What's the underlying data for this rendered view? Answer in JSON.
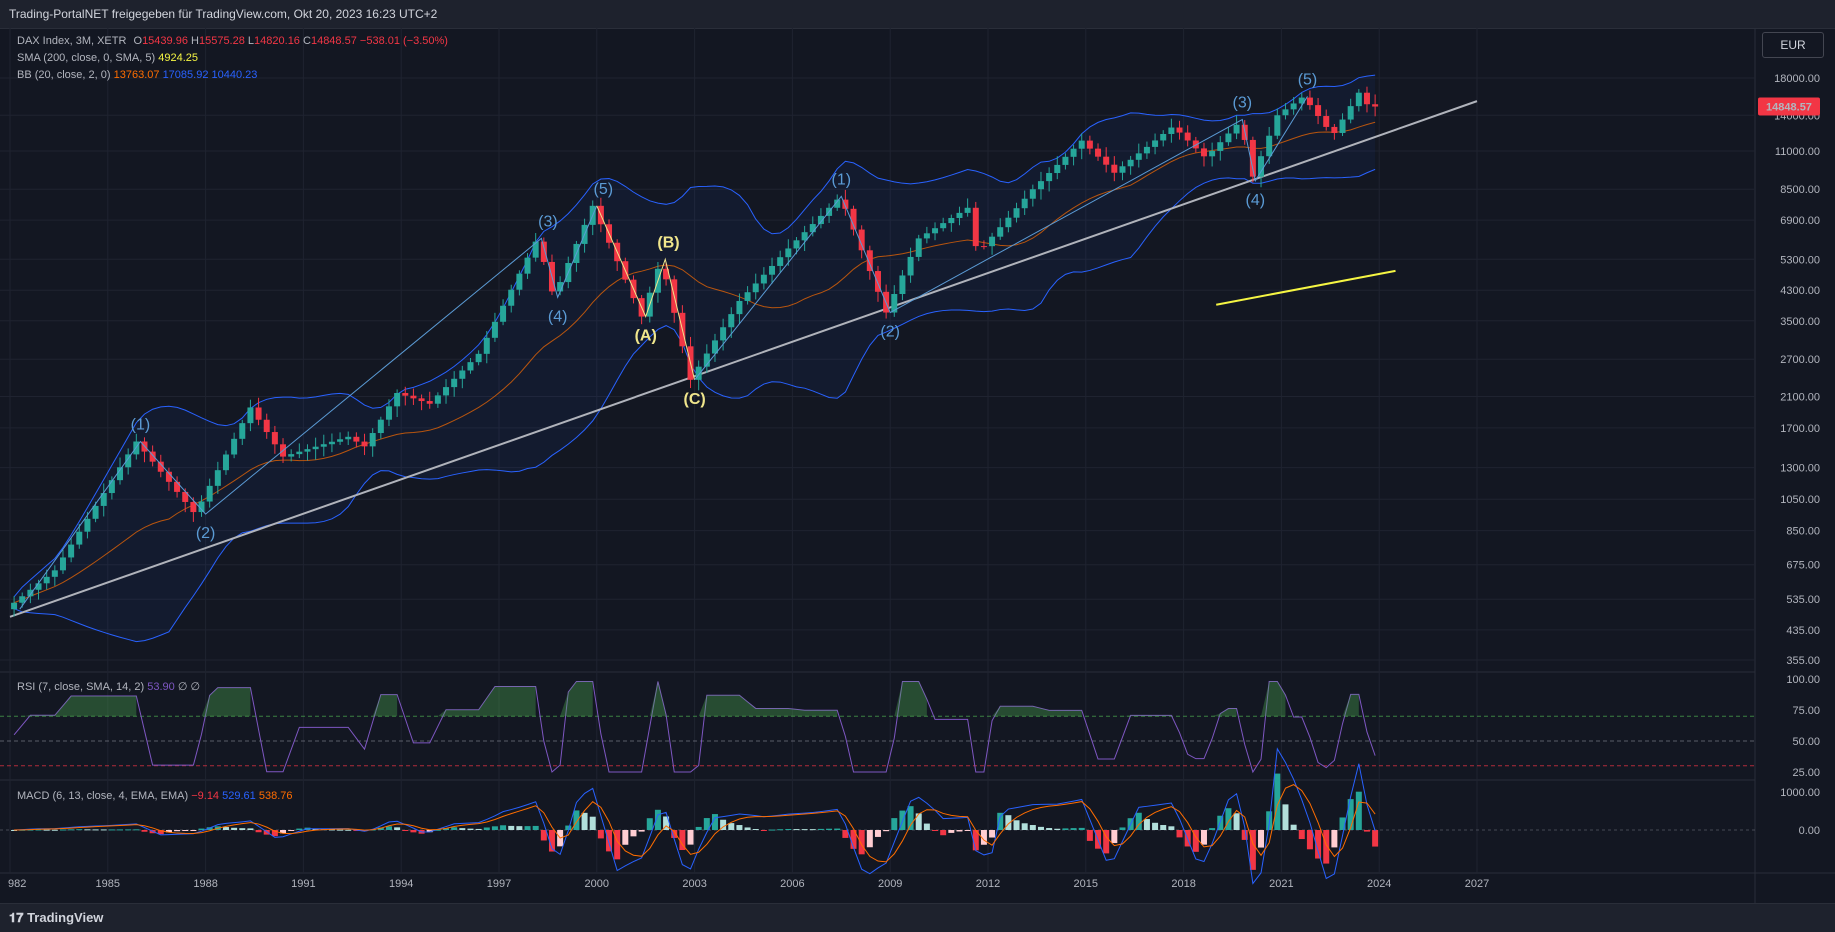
{
  "header": {
    "title": "Trading-PortalNET freigegeben für TradingView.com, Okt 20, 2023 16:23 UTC+2"
  },
  "footer": {
    "brand": "TradingView"
  },
  "currency_button": "EUR",
  "legend": {
    "main": {
      "name": "DAX Index, 3M, XETR",
      "o_label": "O",
      "o": "15439.96",
      "h_label": "H",
      "h": "15575.28",
      "l_label": "L",
      "l": "14820.16",
      "c_label": "C",
      "c": "14848.57",
      "chg": "−538.01 (−3.50%)"
    },
    "sma": {
      "name": "SMA (200, close, 0, SMA, 5)",
      "value": "4924.25"
    },
    "bb": {
      "name": "BB (20, close, 2, 0)",
      "basis": "13763.07",
      "upper": "17085.92",
      "lower": "10440.23"
    },
    "rsi": {
      "name": "RSI (7, close, SMA, 14, 2)",
      "value": "53.90",
      "v2": "∅",
      "v3": "∅"
    },
    "macd": {
      "name": "MACD (6, 13, close, 4, EMA, EMA)",
      "hist": "−9.14",
      "macd": "529.61",
      "signal": "538.76"
    }
  },
  "last_price_label": "14848.57",
  "colors": {
    "up": "#26a69a",
    "down": "#f23645",
    "bb": "#2962ff",
    "basis": "#ff6d00",
    "sma": "#f5f543",
    "rsi": "#7e57c2",
    "wave_blue": "#5b9bd5",
    "wave_yellow": "#f0e68c",
    "trend": "#b0b3bb"
  },
  "chart_data": [
    {
      "type": "candlestick",
      "title": "DAX Index, 3M, XETR",
      "scale": "log",
      "y_ticks": [
        "18000.00",
        "14000.00",
        "11000.00",
        "8500.00",
        "6900.00",
        "5300.00",
        "4300.00",
        "3500.00",
        "2700.00",
        "2100.00",
        "1700.00",
        "1300.00",
        "1050.00",
        "850.00",
        "675.00",
        "535.00",
        "435.00",
        "355.00"
      ],
      "x_ticks": [
        "982",
        "1985",
        "1988",
        "1991",
        "1994",
        "1997",
        "2000",
        "2003",
        "2006",
        "2009",
        "2012",
        "2015",
        "2018",
        "2021",
        "2024",
        "2027"
      ],
      "keypoints": [
        {
          "x": 1982.0,
          "y": 500
        },
        {
          "x": 1983.5,
          "y": 650
        },
        {
          "x": 1986.0,
          "y": 1550
        },
        {
          "x": 1987.8,
          "y": 950
        },
        {
          "x": 1989.5,
          "y": 1950
        },
        {
          "x": 1990.5,
          "y": 1400
        },
        {
          "x": 1992.5,
          "y": 1600
        },
        {
          "x": 1993.0,
          "y": 1500
        },
        {
          "x": 1994.0,
          "y": 2150
        },
        {
          "x": 1995.0,
          "y": 2000
        },
        {
          "x": 1996.5,
          "y": 2800
        },
        {
          "x": 1998.3,
          "y": 6100
        },
        {
          "x": 1998.8,
          "y": 4100
        },
        {
          "x": 2000.0,
          "y": 7600
        },
        {
          "x": 2001.5,
          "y": 3600
        },
        {
          "x": 2002.1,
          "y": 5300
        },
        {
          "x": 2003.0,
          "y": 2350
        },
        {
          "x": 2004.5,
          "y": 4000
        },
        {
          "x": 2006.0,
          "y": 5700
        },
        {
          "x": 2007.6,
          "y": 8100
        },
        {
          "x": 2009.0,
          "y": 3700
        },
        {
          "x": 2010.0,
          "y": 6100
        },
        {
          "x": 2011.5,
          "y": 7500
        },
        {
          "x": 2011.8,
          "y": 5500
        },
        {
          "x": 2013.5,
          "y": 8500
        },
        {
          "x": 2015.0,
          "y": 11800
        },
        {
          "x": 2016.0,
          "y": 9500
        },
        {
          "x": 2017.8,
          "y": 13000
        },
        {
          "x": 2018.8,
          "y": 10500
        },
        {
          "x": 2019.9,
          "y": 13600
        },
        {
          "x": 2020.2,
          "y": 9000
        },
        {
          "x": 2021.0,
          "y": 14000
        },
        {
          "x": 2021.8,
          "y": 15900
        },
        {
          "x": 2022.7,
          "y": 12200
        },
        {
          "x": 2023.5,
          "y": 16300
        },
        {
          "x": 2023.8,
          "y": 14848
        }
      ],
      "last_value": 14848.57,
      "wave_labels": [
        {
          "text": "(1)",
          "x": 1986.0,
          "y": 1550,
          "color": "blue",
          "pos": "above"
        },
        {
          "text": "(2)",
          "x": 1988.0,
          "y": 950,
          "color": "blue",
          "pos": "below"
        },
        {
          "text": "(3)",
          "x": 1998.5,
          "y": 6100,
          "color": "blue",
          "pos": "above"
        },
        {
          "text": "(4)",
          "x": 1998.8,
          "y": 4100,
          "color": "blue",
          "pos": "below"
        },
        {
          "text": "(5)",
          "x": 2000.2,
          "y": 7600,
          "color": "blue",
          "pos": "above"
        },
        {
          "text": "(A)",
          "x": 2001.5,
          "y": 3600,
          "color": "yellow",
          "pos": "below"
        },
        {
          "text": "(B)",
          "x": 2002.2,
          "y": 5300,
          "color": "yellow",
          "pos": "above"
        },
        {
          "text": "(C)",
          "x": 2003.0,
          "y": 2350,
          "color": "yellow",
          "pos": "below"
        },
        {
          "text": "(1)",
          "x": 2007.5,
          "y": 8100,
          "color": "blue",
          "pos": "above"
        },
        {
          "text": "(2)",
          "x": 2009.0,
          "y": 3700,
          "color": "blue",
          "pos": "below"
        },
        {
          "text": "(3)",
          "x": 2019.8,
          "y": 13600,
          "color": "blue",
          "pos": "above"
        },
        {
          "text": "(4)",
          "x": 2020.2,
          "y": 9000,
          "color": "blue",
          "pos": "below"
        },
        {
          "text": "(5)",
          "x": 2021.8,
          "y": 15900,
          "color": "blue",
          "pos": "above"
        }
      ],
      "wave_lines": [
        {
          "color": "blue",
          "pts": [
            [
              1982.3,
              500
            ],
            [
              1986.0,
              1550
            ],
            [
              1988.0,
              950
            ],
            [
              1998.3,
              6100
            ],
            [
              1998.8,
              4100
            ],
            [
              2000.0,
              7600
            ]
          ]
        },
        {
          "color": "yellow",
          "pts": [
            [
              2000.0,
              7600
            ],
            [
              2001.5,
              3600
            ],
            [
              2002.1,
              5300
            ],
            [
              2003.0,
              2350
            ]
          ]
        },
        {
          "color": "blue",
          "pts": [
            [
              2003.0,
              2350
            ],
            [
              2007.5,
              8100
            ],
            [
              2009.0,
              3700
            ],
            [
              2019.8,
              13600
            ],
            [
              2020.2,
              9000
            ],
            [
              2021.8,
              15900
            ]
          ]
        }
      ],
      "trendline": [
        [
          1982.0,
          475
        ],
        [
          2027.0,
          15400
        ]
      ],
      "sma_segment": [
        [
          2019.0,
          3900
        ],
        [
          2024.5,
          4900
        ]
      ]
    },
    {
      "type": "line",
      "title": "RSI (7, close, SMA, 14, 2)",
      "ylim": [
        20,
        100
      ],
      "y_ticks": [
        "100.00",
        "75.00",
        "50.00",
        "25.00"
      ],
      "levels": [
        70,
        50,
        30
      ]
    },
    {
      "type": "bar",
      "title": "MACD (6, 13, close, 4, EMA, EMA)",
      "y_ticks": [
        "1000.00",
        "0.00"
      ]
    }
  ]
}
